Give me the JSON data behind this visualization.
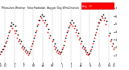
{
  "title": "Milwaukee Weather  Solar Radiation  Avg per Day W/m2/minute",
  "background_color": "#ffffff",
  "plot_bg_color": "#ffffff",
  "grid_color": "#aaaaaa",
  "x_min": 0,
  "x_max": 730,
  "y_min": 0,
  "y_max": 7,
  "y_ticks": [
    1,
    2,
    3,
    4,
    5,
    6,
    7
  ],
  "series1_color": "#ff0000",
  "series2_color": "#000000",
  "marker_size": 1.2,
  "vgrid_positions": [
    30,
    91,
    152,
    213,
    274,
    335,
    396,
    456,
    517,
    578,
    639,
    700
  ],
  "month_positions": [
    0,
    30,
    91,
    152,
    213,
    274,
    335,
    396,
    456,
    517,
    578,
    639,
    700,
    730
  ],
  "month_labels": [
    "N",
    "D",
    "J",
    "F",
    "M",
    "A",
    "M",
    "J",
    "J",
    "A",
    "S",
    "O",
    "N",
    "D"
  ],
  "series1_x": [
    0,
    10,
    20,
    30,
    40,
    50,
    60,
    70,
    80,
    91,
    101,
    111,
    121,
    131,
    141,
    152,
    162,
    172,
    182,
    192,
    202,
    213,
    223,
    233,
    243,
    253,
    263,
    274,
    284,
    294,
    304,
    314,
    335,
    345,
    355,
    365,
    375,
    385,
    396,
    406,
    416,
    426,
    436,
    446,
    456,
    466,
    476,
    486,
    496,
    507,
    517,
    527,
    537,
    547,
    557,
    567,
    578,
    588,
    598,
    608,
    618,
    628,
    639,
    649,
    659,
    669,
    679,
    700,
    710,
    720,
    730
  ],
  "series1_y": [
    1.2,
    1.5,
    1.8,
    2.2,
    2.8,
    3.5,
    4.2,
    4.8,
    4.5,
    4.2,
    3.8,
    3.2,
    2.8,
    2.5,
    2.0,
    1.8,
    1.5,
    1.3,
    1.1,
    1.5,
    2.2,
    2.8,
    3.5,
    4.2,
    5.0,
    5.5,
    5.8,
    5.5,
    5.2,
    4.8,
    4.0,
    3.2,
    2.8,
    2.2,
    1.8,
    1.5,
    1.3,
    1.2,
    1.5,
    2.0,
    2.8,
    3.5,
    4.2,
    4.8,
    5.0,
    4.8,
    4.5,
    4.0,
    3.5,
    3.0,
    2.5,
    2.0,
    1.8,
    1.5,
    1.2,
    1.1,
    1.3,
    1.8,
    2.5,
    3.2,
    4.0,
    4.8,
    5.2,
    5.5,
    5.8,
    5.5,
    5.0,
    3.5,
    2.8,
    2.2,
    1.8
  ],
  "series2_x": [
    5,
    15,
    25,
    35,
    45,
    55,
    65,
    75,
    85,
    96,
    106,
    116,
    126,
    136,
    146,
    157,
    167,
    177,
    187,
    197,
    207,
    218,
    228,
    238,
    248,
    258,
    268,
    279,
    289,
    299,
    309,
    319,
    340,
    350,
    360,
    370,
    380,
    390,
    401,
    411,
    421,
    431,
    441,
    451,
    461,
    471,
    481,
    491,
    501,
    512,
    522,
    532,
    542,
    552,
    562,
    572,
    583,
    593,
    603,
    613,
    623,
    633,
    644,
    654,
    664,
    674,
    684,
    705,
    715,
    725
  ],
  "series2_y": [
    1.5,
    1.8,
    2.2,
    2.6,
    3.2,
    4.0,
    4.8,
    5.2,
    5.0,
    4.8,
    4.2,
    3.6,
    3.0,
    2.8,
    2.2,
    2.0,
    1.7,
    1.5,
    1.3,
    1.8,
    2.5,
    3.2,
    4.0,
    4.8,
    5.5,
    6.0,
    6.2,
    6.0,
    5.5,
    5.0,
    4.4,
    3.5,
    3.0,
    2.5,
    2.0,
    1.7,
    1.5,
    1.4,
    1.8,
    2.3,
    3.2,
    4.0,
    4.6,
    5.2,
    5.5,
    5.2,
    4.8,
    4.3,
    3.8,
    3.2,
    2.8,
    2.2,
    2.0,
    1.7,
    1.4,
    1.2,
    1.6,
    2.1,
    2.8,
    3.6,
    4.4,
    5.2,
    5.6,
    6.0,
    6.2,
    5.8,
    5.4,
    3.8,
    3.0,
    2.5
  ],
  "legend_label": "Avg   Hi",
  "legend_facecolor": "#ff0000",
  "legend_edgecolor": "#cc0000"
}
